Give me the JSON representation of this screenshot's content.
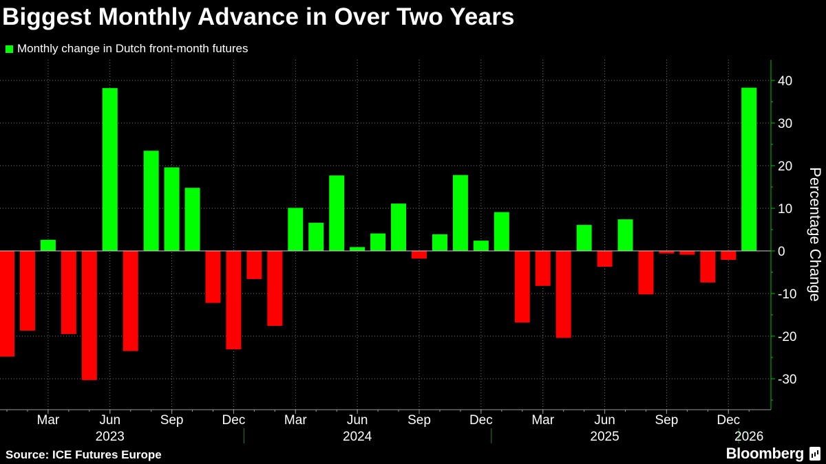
{
  "header": {
    "title": "Biggest Monthly Advance in Over Two Years"
  },
  "legend": {
    "label": "Monthly change in Dutch front-month futures",
    "color": "#00ff00"
  },
  "footer": {
    "source": "Source: ICE Futures Europe",
    "brand": "Bloomberg"
  },
  "chart_data": {
    "type": "bar",
    "ylabel": "Percentage Change",
    "ylim": [
      -38,
      44
    ],
    "yticks": [
      -30,
      -20,
      -10,
      0,
      10,
      20,
      30,
      40
    ],
    "ytick_labels": [
      "-30",
      "-20",
      "-10",
      "0",
      "10",
      "20",
      "30",
      "40"
    ],
    "categories": [
      "2023-01",
      "2023-02",
      "2023-03",
      "2023-04",
      "2023-05",
      "2023-06",
      "2023-07",
      "2023-08",
      "2023-09",
      "2023-10",
      "2023-11",
      "2023-12",
      "2024-01",
      "2024-02",
      "2024-03",
      "2024-04",
      "2024-05",
      "2024-06",
      "2024-07",
      "2024-08",
      "2024-09",
      "2024-10",
      "2024-11",
      "2024-12",
      "2025-01",
      "2025-02",
      "2025-03",
      "2025-04",
      "2025-05",
      "2025-06",
      "2025-07",
      "2025-08",
      "2025-09",
      "2025-10",
      "2025-11",
      "2025-12",
      "2026-01"
    ],
    "values": [
      -24.8,
      -18.7,
      2.6,
      -19.5,
      -30.3,
      38.2,
      -23.5,
      23.5,
      19.6,
      14.8,
      -12.2,
      -23.1,
      -6.6,
      -17.6,
      10.1,
      6.6,
      17.7,
      0.9,
      4.1,
      11.1,
      -1.8,
      3.9,
      17.8,
      2.4,
      9.1,
      -16.8,
      -8.2,
      -20.4,
      6.1,
      -3.7,
      7.4,
      -10.2,
      -0.6,
      -0.9,
      -7.4,
      -2.1,
      38.3
    ],
    "positive_color": "#00ff00",
    "negative_color": "#ff0000",
    "x_month_ticks": [
      {
        "month": "2023-03",
        "label": "Mar"
      },
      {
        "month": "2023-06",
        "label": "Jun"
      },
      {
        "month": "2023-09",
        "label": "Sep"
      },
      {
        "month": "2023-12",
        "label": "Dec"
      },
      {
        "month": "2024-03",
        "label": "Mar"
      },
      {
        "month": "2024-06",
        "label": "Jun"
      },
      {
        "month": "2024-09",
        "label": "Sep"
      },
      {
        "month": "2024-12",
        "label": "Dec"
      },
      {
        "month": "2025-03",
        "label": "Mar"
      },
      {
        "month": "2025-06",
        "label": "Jun"
      },
      {
        "month": "2025-09",
        "label": "Sep"
      },
      {
        "month": "2025-12",
        "label": "Dec"
      }
    ],
    "x_year_labels": [
      {
        "month": "2023-06",
        "label": "2023"
      },
      {
        "month": "2024-06",
        "label": "2024"
      },
      {
        "month": "2025-06",
        "label": "2025"
      },
      {
        "month": "2026-01",
        "label": "2026"
      }
    ],
    "grid": "dotted",
    "legend_position": "top-left"
  }
}
